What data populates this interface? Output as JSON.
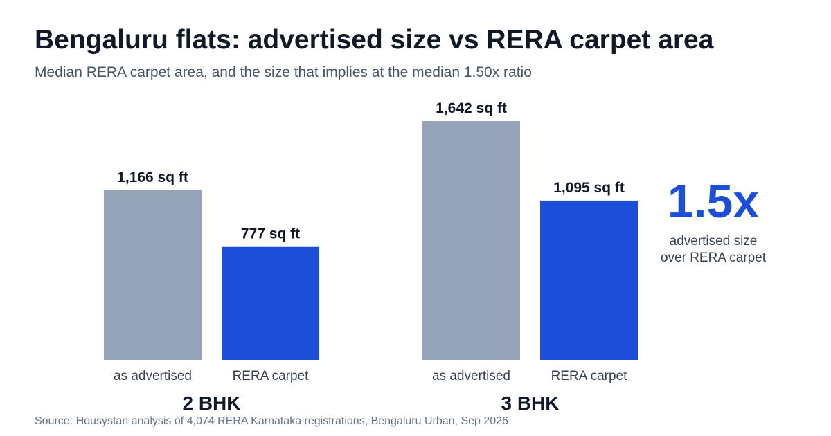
{
  "title": "Bengaluru flats: advertised size vs RERA carpet area",
  "subtitle": "Median RERA carpet area, and the size that implies at the median 1.50x ratio",
  "source": "Source: Housystan analysis of 4,074 RERA Karnataka registrations, Bengaluru Urban, Sep 2026",
  "ratio": {
    "value": "1.5x",
    "caption_line1": "advertised size",
    "caption_line2": "over RERA carpet"
  },
  "chart_data": {
    "type": "bar",
    "unit": "sq ft",
    "groups": [
      "2 BHK",
      "3 BHK"
    ],
    "bar_labels": [
      "as advertised",
      "RERA carpet"
    ],
    "series": [
      {
        "values": [
          1166,
          1642
        ],
        "color": "#94a3b8",
        "value_labels": [
          "1,166 sq ft",
          "1,642 sq ft"
        ]
      },
      {
        "values": [
          777,
          1095
        ],
        "color": "#1d4ed8",
        "value_labels": [
          "777 sq ft",
          "1,095 sq ft"
        ]
      }
    ],
    "ylim": [
      0,
      1642
    ],
    "grid": false
  }
}
